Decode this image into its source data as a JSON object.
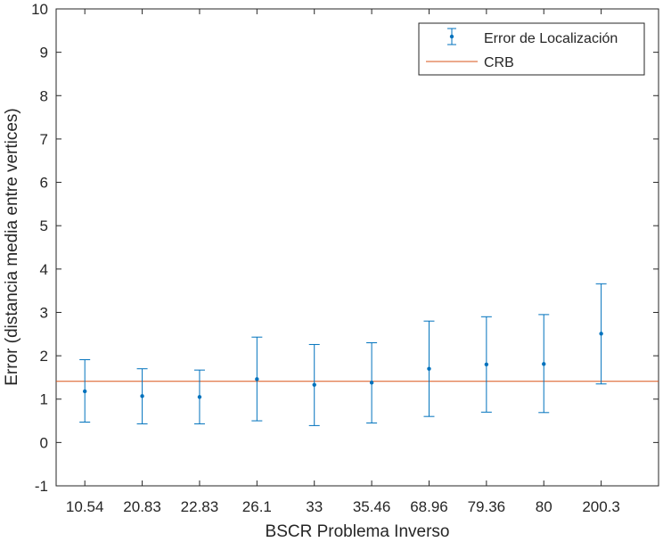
{
  "chart_data": {
    "type": "errorbar",
    "xlabel": "BSCR Problema Inverso",
    "ylabel": "Error (distancia media entre vertices)",
    "categories": [
      "10.54",
      "20.83",
      "22.83",
      "26.1",
      "33",
      "35.46",
      "68.96",
      "79.36",
      "80",
      "200.3"
    ],
    "series": [
      {
        "name": "Error de Localización",
        "values": [
          1.18,
          1.07,
          1.05,
          1.46,
          1.33,
          1.38,
          1.7,
          1.8,
          1.81,
          2.51
        ],
        "lower": [
          0.47,
          0.43,
          0.43,
          0.5,
          0.39,
          0.45,
          0.6,
          0.7,
          0.69,
          1.35
        ],
        "upper": [
          1.91,
          1.7,
          1.67,
          2.43,
          2.26,
          2.3,
          2.8,
          2.9,
          2.95,
          3.66
        ],
        "color": "#0072BD"
      },
      {
        "name": "CRB",
        "type": "hline",
        "value": 1.41,
        "color": "#D95319"
      }
    ],
    "ylim": [
      -1,
      10
    ],
    "yticks": [
      "-1",
      "0",
      "1",
      "2",
      "3",
      "4",
      "5",
      "6",
      "7",
      "8",
      "9",
      "10"
    ],
    "legend": "top-right",
    "grid": false
  }
}
